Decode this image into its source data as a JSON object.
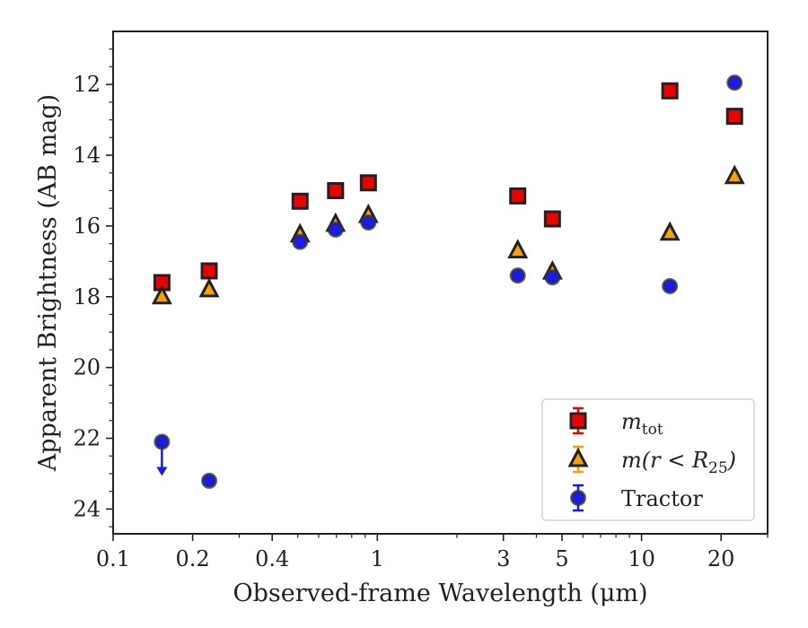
{
  "chart_data": {
    "type": "scatter",
    "xlabel": "Observed-frame Wavelength (μm)",
    "ylabel": "Apparent Brightness (AB mag)",
    "x_scale": "log",
    "xlim": [
      0.1,
      30
    ],
    "ylim": [
      24.7,
      10.5
    ],
    "y_inverted": true,
    "x_ticks": [
      0.1,
      0.2,
      0.4,
      1,
      3,
      5,
      10,
      20
    ],
    "x_tick_labels": [
      "0.1",
      "0.2",
      "0.4",
      "1",
      "3",
      "5",
      "10",
      "20"
    ],
    "y_ticks": [
      12,
      14,
      16,
      18,
      20,
      22,
      24
    ],
    "y_tick_labels": [
      "12",
      "14",
      "16",
      "18",
      "20",
      "22",
      "24"
    ],
    "grid": false,
    "legend_position": "lower-right",
    "series": [
      {
        "name": "m_tot",
        "legend_main": "m",
        "legend_sub": "tot",
        "marker": "square",
        "color": "#ee0000",
        "edge_color": "#222222",
        "errorbar_color": "#ee0000",
        "points": [
          {
            "x": 0.153,
            "y": 17.6
          },
          {
            "x": 0.231,
            "y": 17.27
          },
          {
            "x": 0.51,
            "y": 15.3
          },
          {
            "x": 0.695,
            "y": 15.0
          },
          {
            "x": 0.925,
            "y": 14.78
          },
          {
            "x": 3.4,
            "y": 15.15
          },
          {
            "x": 4.6,
            "y": 15.8
          },
          {
            "x": 12.8,
            "y": 12.18
          },
          {
            "x": 22.5,
            "y": 12.9
          }
        ]
      },
      {
        "name": "m(r < R_25)",
        "legend_main": "m(r < R",
        "legend_sub": "25",
        "legend_tail": ")",
        "marker": "triangle",
        "color": "#f5a300",
        "edge_color": "#222222",
        "errorbar_color": "#f5a300",
        "points": [
          {
            "x": 0.153,
            "y": 18.0
          },
          {
            "x": 0.231,
            "y": 17.8
          },
          {
            "x": 0.51,
            "y": 16.25
          },
          {
            "x": 0.695,
            "y": 15.95
          },
          {
            "x": 0.925,
            "y": 15.7
          },
          {
            "x": 3.4,
            "y": 16.7
          },
          {
            "x": 4.6,
            "y": 17.3
          },
          {
            "x": 12.8,
            "y": 16.2
          },
          {
            "x": 22.5,
            "y": 14.6
          }
        ]
      },
      {
        "name": "Tractor",
        "legend_main": "Tractor",
        "marker": "circle",
        "color": "#1a1aee",
        "edge_color": "#333333",
        "errorbar_color": "#1a1aee",
        "points": [
          {
            "x": 0.153,
            "y": 22.1,
            "upper_limit": true
          },
          {
            "x": 0.231,
            "y": 23.2
          },
          {
            "x": 0.51,
            "y": 16.45
          },
          {
            "x": 0.695,
            "y": 16.1
          },
          {
            "x": 0.925,
            "y": 15.9
          },
          {
            "x": 3.4,
            "y": 17.4
          },
          {
            "x": 4.6,
            "y": 17.45
          },
          {
            "x": 12.8,
            "y": 17.7
          },
          {
            "x": 22.5,
            "y": 11.95
          }
        ]
      }
    ]
  }
}
